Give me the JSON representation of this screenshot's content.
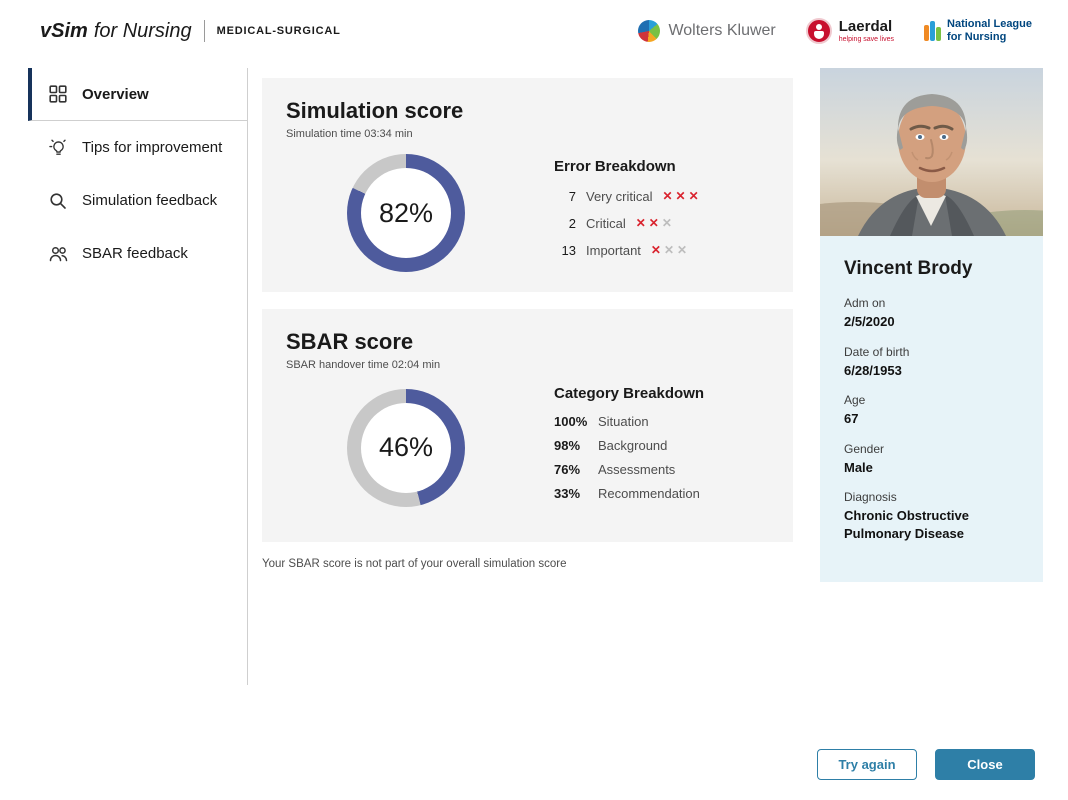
{
  "header": {
    "brand": "vSim",
    "brand_suffix": "for Nursing",
    "product": "MEDICAL-SURGICAL",
    "partners": {
      "wolters_kluwer": {
        "name": "Wolters Kluwer"
      },
      "laerdal": {
        "name": "Laerdal",
        "tagline": "helping save lives"
      },
      "nln": {
        "line1": "National League",
        "line2": "for Nursing"
      }
    }
  },
  "sidebar": {
    "items": [
      {
        "label": "Overview",
        "active": true
      },
      {
        "label": "Tips for improvement",
        "active": false
      },
      {
        "label": "Simulation feedback",
        "active": false
      },
      {
        "label": "SBAR feedback",
        "active": false
      }
    ]
  },
  "simulation_card": {
    "title": "Simulation score",
    "subtitle": "Simulation time 03:34 min",
    "score_label": "82%",
    "score_value": 82,
    "error_breakdown": {
      "title": "Error Breakdown",
      "rows": [
        {
          "count": "7",
          "label": "Very critical",
          "red_marks": 3
        },
        {
          "count": "2",
          "label": "Critical",
          "red_marks": 2
        },
        {
          "count": "13",
          "label": "Important",
          "red_marks": 1
        }
      ]
    }
  },
  "sbar_card": {
    "title": "SBAR score",
    "subtitle": "SBAR handover time 02:04 min",
    "score_label": "46%",
    "score_value": 46,
    "category_breakdown": {
      "title": "Category Breakdown",
      "rows": [
        {
          "percent": "100%",
          "label": "Situation"
        },
        {
          "percent": "98%",
          "label": "Background"
        },
        {
          "percent": "76%",
          "label": "Assessments"
        },
        {
          "percent": "33%",
          "label": "Recommendation"
        }
      ]
    }
  },
  "note": "Your SBAR score is not part of your overall simulation score",
  "patient": {
    "name": "Vincent Brody",
    "fields": [
      {
        "label": "Adm on",
        "value": "2/5/2020"
      },
      {
        "label": "Date of birth",
        "value": "6/28/1953"
      },
      {
        "label": "Age",
        "value": "67"
      },
      {
        "label": "Gender",
        "value": "Male"
      },
      {
        "label": "Diagnosis",
        "value": "Chronic Obstructive Pulmonary Disease"
      }
    ]
  },
  "actions": {
    "try_again": "Try again",
    "close": "Close"
  },
  "colors": {
    "accent": "#4e5b9d",
    "ring_rest": "#c8c8c8",
    "button_blue": "#2e7fa7",
    "error_red": "#d9232e",
    "active_nav": "#16335b",
    "patient_panel_bg": "#e7f3f8"
  },
  "chart_data": [
    {
      "type": "pie",
      "title": "Simulation score",
      "categories": [
        "score",
        "remainder"
      ],
      "values": [
        82,
        18
      ],
      "center_label": "82%"
    },
    {
      "type": "pie",
      "title": "SBAR score",
      "categories": [
        "score",
        "remainder"
      ],
      "values": [
        46,
        54
      ],
      "center_label": "46%"
    }
  ]
}
